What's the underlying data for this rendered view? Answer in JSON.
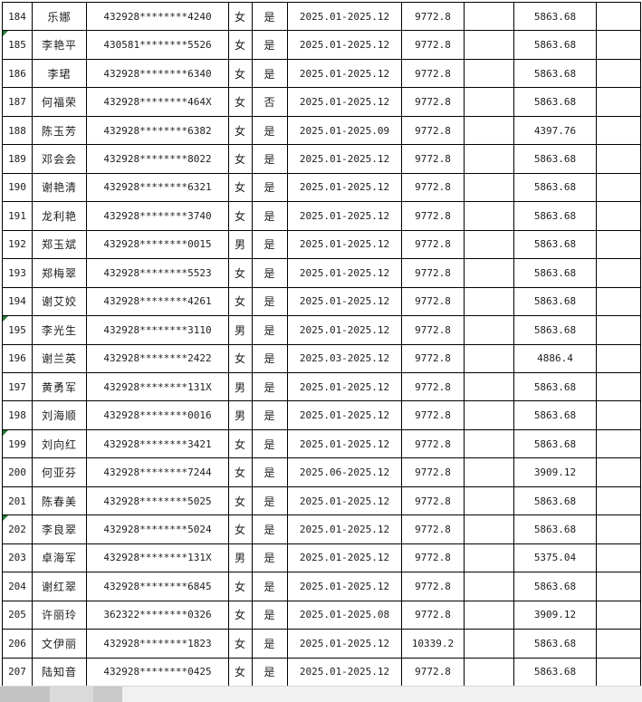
{
  "table": {
    "rows": [
      {
        "num": "184",
        "name": "乐娜",
        "id": "432928********4240",
        "gender": "女",
        "eligible": "是",
        "period": "2025.01-2025.12",
        "standard": "9772.8",
        "blank1": "",
        "amount": "5863.68",
        "blank2": "",
        "marker": false
      },
      {
        "num": "185",
        "name": "李艳平",
        "id": "430581********5526",
        "gender": "女",
        "eligible": "是",
        "period": "2025.01-2025.12",
        "standard": "9772.8",
        "blank1": "",
        "amount": "5863.68",
        "blank2": "",
        "marker": true
      },
      {
        "num": "186",
        "name": "李珺",
        "id": "432928********6340",
        "gender": "女",
        "eligible": "是",
        "period": "2025.01-2025.12",
        "standard": "9772.8",
        "blank1": "",
        "amount": "5863.68",
        "blank2": "",
        "marker": false
      },
      {
        "num": "187",
        "name": "何福荣",
        "id": "432928********464X",
        "gender": "女",
        "eligible": "否",
        "period": "2025.01-2025.12",
        "standard": "9772.8",
        "blank1": "",
        "amount": "5863.68",
        "blank2": "",
        "marker": false
      },
      {
        "num": "188",
        "name": "陈玉芳",
        "id": "432928********6382",
        "gender": "女",
        "eligible": "是",
        "period": "2025.01-2025.09",
        "standard": "9772.8",
        "blank1": "",
        "amount": "4397.76",
        "blank2": "",
        "marker": false
      },
      {
        "num": "189",
        "name": "邓会会",
        "id": "432928********8022",
        "gender": "女",
        "eligible": "是",
        "period": "2025.01-2025.12",
        "standard": "9772.8",
        "blank1": "",
        "amount": "5863.68",
        "blank2": "",
        "marker": false
      },
      {
        "num": "190",
        "name": "谢艳清",
        "id": "432928********6321",
        "gender": "女",
        "eligible": "是",
        "period": "2025.01-2025.12",
        "standard": "9772.8",
        "blank1": "",
        "amount": "5863.68",
        "blank2": "",
        "marker": false
      },
      {
        "num": "191",
        "name": "龙利艳",
        "id": "432928********3740",
        "gender": "女",
        "eligible": "是",
        "period": "2025.01-2025.12",
        "standard": "9772.8",
        "blank1": "",
        "amount": "5863.68",
        "blank2": "",
        "marker": false
      },
      {
        "num": "192",
        "name": "郑玉斌",
        "id": "432928********0015",
        "gender": "男",
        "eligible": "是",
        "period": "2025.01-2025.12",
        "standard": "9772.8",
        "blank1": "",
        "amount": "5863.68",
        "blank2": "",
        "marker": false
      },
      {
        "num": "193",
        "name": "郑梅翠",
        "id": "432928********5523",
        "gender": "女",
        "eligible": "是",
        "period": "2025.01-2025.12",
        "standard": "9772.8",
        "blank1": "",
        "amount": "5863.68",
        "blank2": "",
        "marker": false
      },
      {
        "num": "194",
        "name": "谢艾姣",
        "id": "432928********4261",
        "gender": "女",
        "eligible": "是",
        "period": "2025.01-2025.12",
        "standard": "9772.8",
        "blank1": "",
        "amount": "5863.68",
        "blank2": "",
        "marker": false
      },
      {
        "num": "195",
        "name": "李光生",
        "id": "432928********3110",
        "gender": "男",
        "eligible": "是",
        "period": "2025.01-2025.12",
        "standard": "9772.8",
        "blank1": "",
        "amount": "5863.68",
        "blank2": "",
        "marker": true
      },
      {
        "num": "196",
        "name": "谢兰英",
        "id": "432928********2422",
        "gender": "女",
        "eligible": "是",
        "period": "2025.03-2025.12",
        "standard": "9772.8",
        "blank1": "",
        "amount": "4886.4",
        "blank2": "",
        "marker": false
      },
      {
        "num": "197",
        "name": "黄勇军",
        "id": "432928********131X",
        "gender": "男",
        "eligible": "是",
        "period": "2025.01-2025.12",
        "standard": "9772.8",
        "blank1": "",
        "amount": "5863.68",
        "blank2": "",
        "marker": false
      },
      {
        "num": "198",
        "name": "刘海顺",
        "id": "432928********0016",
        "gender": "男",
        "eligible": "是",
        "period": "2025.01-2025.12",
        "standard": "9772.8",
        "blank1": "",
        "amount": "5863.68",
        "blank2": "",
        "marker": false
      },
      {
        "num": "199",
        "name": "刘向红",
        "id": "432928********3421",
        "gender": "女",
        "eligible": "是",
        "period": "2025.01-2025.12",
        "standard": "9772.8",
        "blank1": "",
        "amount": "5863.68",
        "blank2": "",
        "marker": true
      },
      {
        "num": "200",
        "name": "何亚芬",
        "id": "432928********7244",
        "gender": "女",
        "eligible": "是",
        "period": "2025.06-2025.12",
        "standard": "9772.8",
        "blank1": "",
        "amount": "3909.12",
        "blank2": "",
        "marker": false
      },
      {
        "num": "201",
        "name": "陈春美",
        "id": "432928********5025",
        "gender": "女",
        "eligible": "是",
        "period": "2025.01-2025.12",
        "standard": "9772.8",
        "blank1": "",
        "amount": "5863.68",
        "blank2": "",
        "marker": false
      },
      {
        "num": "202",
        "name": "李良翠",
        "id": "432928********5024",
        "gender": "女",
        "eligible": "是",
        "period": "2025.01-2025.12",
        "standard": "9772.8",
        "blank1": "",
        "amount": "5863.68",
        "blank2": "",
        "marker": true
      },
      {
        "num": "203",
        "name": "卓海军",
        "id": "432928********131X",
        "gender": "男",
        "eligible": "是",
        "period": "2025.01-2025.12",
        "standard": "9772.8",
        "blank1": "",
        "amount": "5375.04",
        "blank2": "",
        "marker": false
      },
      {
        "num": "204",
        "name": "谢红翠",
        "id": "432928********6845",
        "gender": "女",
        "eligible": "是",
        "period": "2025.01-2025.12",
        "standard": "9772.8",
        "blank1": "",
        "amount": "5863.68",
        "blank2": "",
        "marker": false
      },
      {
        "num": "205",
        "name": "许丽玲",
        "id": "362322********0326",
        "gender": "女",
        "eligible": "是",
        "period": "2025.01-2025.08",
        "standard": "9772.8",
        "blank1": "",
        "amount": "3909.12",
        "blank2": "",
        "marker": false
      },
      {
        "num": "206",
        "name": "文伊丽",
        "id": "432928********1823",
        "gender": "女",
        "eligible": "是",
        "period": "2025.01-2025.12",
        "standard": "10339.2",
        "blank1": "",
        "amount": "5863.68",
        "blank2": "",
        "marker": false
      },
      {
        "num": "207",
        "name": "陆知音",
        "id": "432928********0425",
        "gender": "女",
        "eligible": "是",
        "period": "2025.01-2025.12",
        "standard": "9772.8",
        "blank1": "",
        "amount": "5863.68",
        "blank2": "",
        "marker": false
      }
    ]
  },
  "colors": {
    "grid_line": "#000000",
    "error_marker_green": "#217a36",
    "bottom_bar_light": "#f1f1f1",
    "bottom_bar_segment_dark": "#c3c3c3"
  }
}
